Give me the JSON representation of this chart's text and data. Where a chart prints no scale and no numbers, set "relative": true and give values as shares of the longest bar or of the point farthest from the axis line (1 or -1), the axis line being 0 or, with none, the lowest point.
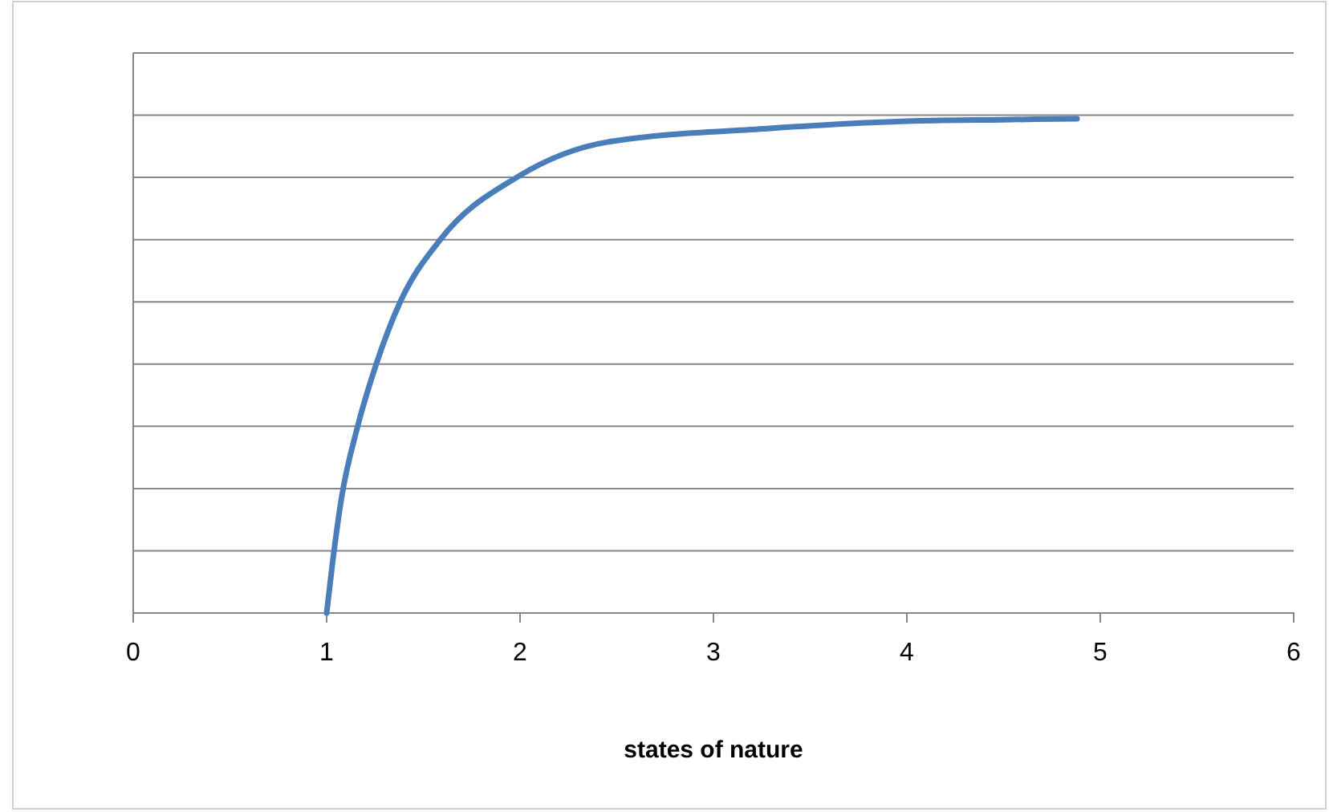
{
  "chart_data": {
    "type": "line",
    "xlabel": "states of nature",
    "relative": true,
    "grid": "y",
    "xlim": [
      0,
      6
    ],
    "xticks": [
      0,
      1,
      2,
      3,
      4,
      5,
      6
    ],
    "series": [
      {
        "color": "#4a7ebb",
        "x": [
          1,
          1.03,
          1.077,
          1.16,
          1.256,
          1.38,
          1.587,
          1.986,
          2.455,
          3.28,
          4,
          4.5,
          4.88
        ],
        "values": [
          0,
          0.1,
          0.233,
          0.377,
          0.503,
          0.629,
          0.755,
          0.882,
          0.953,
          0.98,
          0.995,
          0.998,
          1
        ]
      }
    ]
  }
}
